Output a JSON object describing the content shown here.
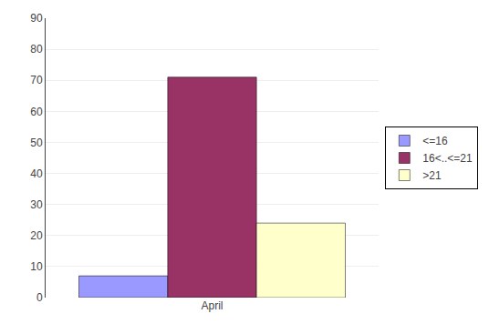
{
  "chart_data": {
    "type": "bar",
    "categories": [
      "April"
    ],
    "series": [
      {
        "name": "<=16",
        "color": "#9999FF",
        "values": [
          7
        ]
      },
      {
        "name": "16<..<=21",
        "color": "#993366",
        "values": [
          71
        ]
      },
      {
        "name": ">21",
        "color": "#FFFFCC",
        "values": [
          24
        ]
      }
    ],
    "ylim": [
      0,
      90
    ],
    "yticks": [
      0,
      10,
      20,
      30,
      40,
      50,
      60,
      70,
      80,
      90
    ],
    "grid": true,
    "legend": "right"
  }
}
